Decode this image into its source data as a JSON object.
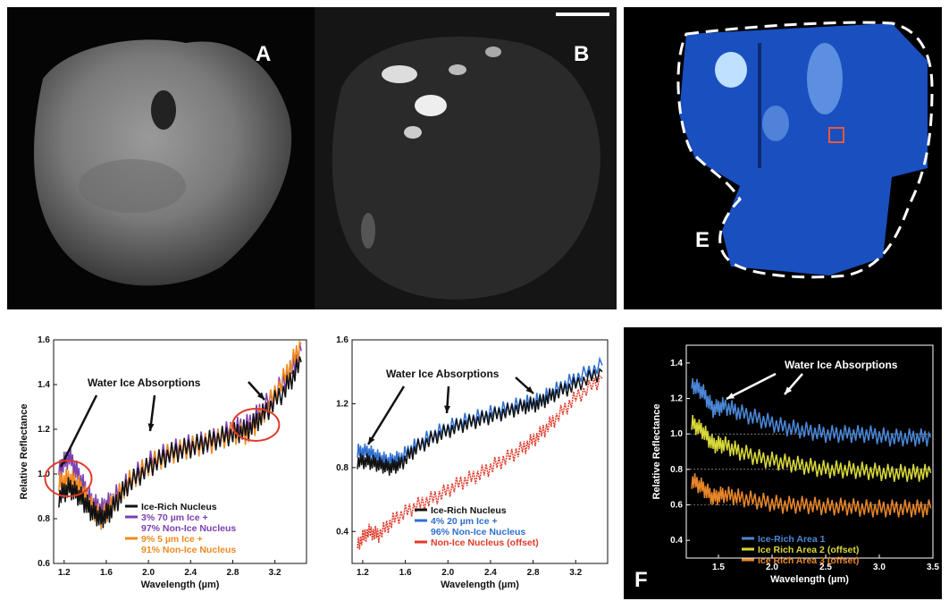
{
  "panels": {
    "A": {
      "label": "A"
    },
    "B": {
      "label": "B"
    },
    "E": {
      "label": "E"
    },
    "F": {
      "label": "F"
    }
  },
  "colors": {
    "black": "#111111",
    "purple": "#7b3fb0",
    "orange": "#f08a20",
    "blue": "#2f6fd0",
    "red": "#e03a2a",
    "yellow": "#d8d83a",
    "f_blue": "#4a88d8",
    "f_orange": "#e8862a",
    "map_blue": "#1a4fc0"
  },
  "chart_data": [
    {
      "type": "line",
      "id": "C",
      "xlabel": "Wavelength (µm)",
      "ylabel": "Relative Reflectance",
      "xlim": [
        1.1,
        3.5
      ],
      "ylim": [
        0.6,
        1.6
      ],
      "xticks": [
        "1.2",
        "1.6",
        "2.0",
        "2.4",
        "2.8",
        "3.2"
      ],
      "yticks": [
        "0.6",
        "0.8",
        "1.0",
        "1.2",
        "1.4",
        "1.6"
      ],
      "annotation": "Water Ice Absorptions",
      "legend": [
        {
          "label": "Ice-Rich Nucleus",
          "color": "#111111"
        },
        {
          "label": "3% 70 µm Ice +",
          "color": "#7b3fb0"
        },
        {
          "label": "97% Non-Ice Nucleus",
          "color": "#7b3fb0"
        },
        {
          "label": "9% 5 µm Ice +",
          "color": "#f08a20"
        },
        {
          "label": "91% Non-Ice Nucleus",
          "color": "#f08a20"
        }
      ],
      "series": [
        {
          "color": "#7b3fb0",
          "x": [
            1.15,
            1.25,
            1.35,
            1.45,
            1.55,
            1.65,
            1.8,
            2.0,
            2.2,
            2.4,
            2.6,
            2.8,
            2.95,
            3.1,
            3.3,
            3.45
          ],
          "y": [
            1.02,
            1.08,
            0.98,
            0.88,
            0.84,
            0.88,
            0.96,
            1.05,
            1.1,
            1.13,
            1.15,
            1.2,
            1.22,
            1.3,
            1.42,
            1.55
          ]
        },
        {
          "color": "#f08a20",
          "x": [
            1.15,
            1.25,
            1.35,
            1.45,
            1.55,
            1.65,
            1.8,
            2.0,
            2.2,
            2.4,
            2.6,
            2.8,
            2.95,
            3.1,
            3.3,
            3.45
          ],
          "y": [
            0.96,
            0.98,
            0.94,
            0.86,
            0.8,
            0.86,
            0.96,
            1.04,
            1.09,
            1.12,
            1.14,
            1.18,
            1.18,
            1.28,
            1.44,
            1.58
          ]
        },
        {
          "color": "#111111",
          "x": [
            1.15,
            1.25,
            1.35,
            1.45,
            1.55,
            1.65,
            1.8,
            2.0,
            2.2,
            2.4,
            2.6,
            2.8,
            2.95,
            3.1,
            3.3,
            3.45
          ],
          "y": [
            0.9,
            0.94,
            0.9,
            0.84,
            0.8,
            0.84,
            0.95,
            1.03,
            1.09,
            1.12,
            1.15,
            1.18,
            1.2,
            1.27,
            1.38,
            1.5
          ]
        }
      ]
    },
    {
      "type": "line",
      "id": "D",
      "xlabel": "Wavelength (µm)",
      "ylabel": "",
      "xlim": [
        1.1,
        3.5
      ],
      "ylim": [
        0.2,
        1.6
      ],
      "xticks": [
        "1.2",
        "1.6",
        "2.0",
        "2.4",
        "2.8",
        "3.2"
      ],
      "yticks": [
        "0.4",
        "0.8",
        "1.2",
        "1.6"
      ],
      "annotation": "Water Ice Absorptions",
      "legend": [
        {
          "label": "Ice-Rich Nucleus",
          "color": "#111111"
        },
        {
          "label": "4% 20 µm Ice +",
          "color": "#2f6fd0"
        },
        {
          "label": "96% Non-Ice Nucleus",
          "color": "#2f6fd0"
        },
        {
          "label": "Non-Ice Nucleus (offset)",
          "color": "#e03a2a"
        }
      ],
      "series": [
        {
          "color": "#e03a2a",
          "x": [
            1.15,
            1.25,
            1.35,
            1.5,
            1.7,
            1.9,
            2.1,
            2.3,
            2.5,
            2.7,
            2.85,
            3.0,
            3.2,
            3.45
          ],
          "y": [
            0.32,
            0.4,
            0.38,
            0.48,
            0.56,
            0.62,
            0.7,
            0.76,
            0.84,
            0.92,
            1.0,
            1.1,
            1.24,
            1.36
          ]
        },
        {
          "color": "#2f6fd0",
          "x": [
            1.15,
            1.25,
            1.35,
            1.45,
            1.55,
            1.7,
            1.9,
            2.1,
            2.3,
            2.5,
            2.7,
            2.85,
            3.0,
            3.2,
            3.45
          ],
          "y": [
            0.9,
            0.9,
            0.86,
            0.84,
            0.86,
            0.94,
            1.02,
            1.08,
            1.12,
            1.16,
            1.2,
            1.22,
            1.28,
            1.36,
            1.44
          ]
        },
        {
          "color": "#111111",
          "x": [
            1.15,
            1.25,
            1.35,
            1.45,
            1.55,
            1.7,
            1.9,
            2.1,
            2.3,
            2.5,
            2.7,
            2.85,
            3.0,
            3.2,
            3.45
          ],
          "y": [
            0.84,
            0.84,
            0.82,
            0.8,
            0.82,
            0.92,
            1.0,
            1.06,
            1.1,
            1.14,
            1.18,
            1.2,
            1.26,
            1.32,
            1.4
          ]
        }
      ]
    },
    {
      "type": "line",
      "id": "F",
      "xlabel": "Wavelength (µm)",
      "ylabel": "Relative Reflectance",
      "xlim": [
        1.2,
        3.5
      ],
      "ylim": [
        0.3,
        1.5
      ],
      "xticks": [
        "1.5",
        "2.0",
        "2.5",
        "3.0",
        "3.5"
      ],
      "yticks": [
        "0.4",
        "0.6",
        "0.8",
        "1.0",
        "1.2",
        "1.4"
      ],
      "annotation": "Water Ice Absorptions",
      "legend": [
        {
          "label": "Ice-Rich Area 1",
          "color": "#4a88d8"
        },
        {
          "label": "Ice Rich Area 2 (offset)",
          "color": "#d8d83a"
        },
        {
          "label": "Ice Rich Area 3 (offset)",
          "color": "#e8862a"
        }
      ],
      "series": [
        {
          "color": "#4a88d8",
          "x": [
            1.25,
            1.35,
            1.45,
            1.55,
            1.7,
            1.9,
            2.1,
            2.3,
            2.5,
            2.7,
            2.9,
            3.1,
            3.3,
            3.48
          ],
          "y": [
            1.28,
            1.24,
            1.14,
            1.16,
            1.12,
            1.08,
            1.04,
            1.02,
            1.0,
            1.0,
            1.0,
            0.98,
            0.98,
            0.98
          ]
        },
        {
          "color": "#d8d83a",
          "x": [
            1.25,
            1.35,
            1.45,
            1.55,
            1.7,
            1.9,
            2.1,
            2.3,
            2.5,
            2.7,
            2.9,
            3.1,
            3.3,
            3.48
          ],
          "y": [
            1.06,
            1.02,
            0.94,
            0.94,
            0.9,
            0.86,
            0.84,
            0.82,
            0.8,
            0.8,
            0.79,
            0.78,
            0.78,
            0.78
          ]
        },
        {
          "color": "#e8862a",
          "x": [
            1.25,
            1.35,
            1.45,
            1.55,
            1.7,
            1.9,
            2.1,
            2.3,
            2.5,
            2.7,
            2.9,
            3.1,
            3.3,
            3.48
          ],
          "y": [
            0.74,
            0.7,
            0.64,
            0.66,
            0.64,
            0.62,
            0.6,
            0.6,
            0.59,
            0.59,
            0.58,
            0.58,
            0.58,
            0.58
          ]
        }
      ]
    }
  ]
}
